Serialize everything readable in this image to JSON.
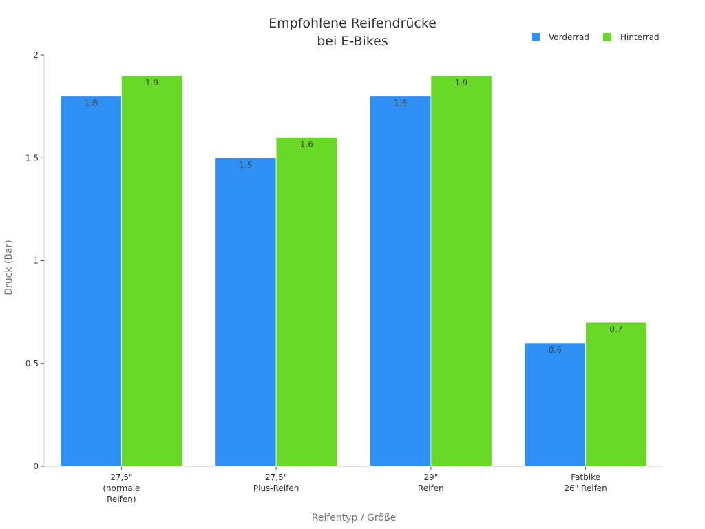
{
  "chart_data": {
    "type": "bar",
    "title": [
      "Empfohlene Reifendrücke",
      "bei E-Bikes"
    ],
    "xlabel": "Reifentyp / Größe",
    "ylabel": "Druck (Bar)",
    "ylim": [
      0,
      2
    ],
    "yticks": [
      "0",
      "0.5",
      "1",
      "1.5",
      "2"
    ],
    "grid": false,
    "legend_position": "top-right",
    "categories": [
      [
        "27,5\"",
        "(normale",
        "Reifen)"
      ],
      [
        "27,5\"",
        "Plus-Reifen"
      ],
      [
        "29\"",
        "Reifen"
      ],
      [
        "Fatbike",
        "26\" Reifen"
      ]
    ],
    "series": [
      {
        "name": "Vorderrad",
        "color": "#2e8ff5",
        "values": [
          1.8,
          1.5,
          1.8,
          0.6
        ],
        "labels": [
          "1.8",
          "1.5",
          "1.8",
          "0.6"
        ]
      },
      {
        "name": "Hinterrad",
        "color": "#67d926",
        "values": [
          1.9,
          1.6,
          1.9,
          0.7
        ],
        "labels": [
          "1.9",
          "1.6",
          "1.9",
          "0.7"
        ]
      }
    ]
  }
}
